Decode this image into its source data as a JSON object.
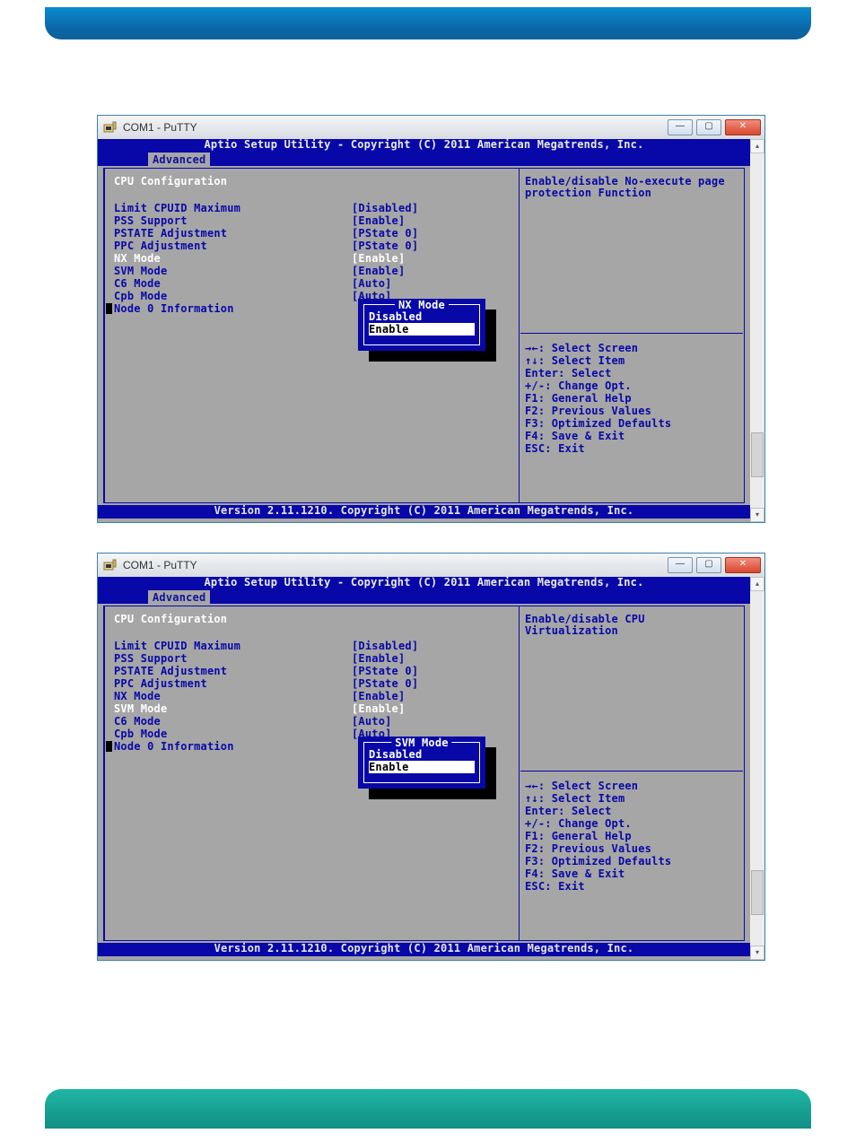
{
  "page": {
    "top_bar_color_start": "#0a8cd0",
    "top_bar_color_end": "#0c5f99",
    "bottom_bar_color_start": "#1fb6a5",
    "bottom_bar_color_end": "#138f84"
  },
  "colors": {
    "bios_bg": "#a6a6a6",
    "bios_blue": "#0808a8",
    "bios_white": "#ffffff",
    "bios_black": "#000000",
    "win_border": "#3c7fb1"
  },
  "window": {
    "title": "COM1 - PuTTY",
    "btn_min": "—",
    "btn_max": "▢",
    "btn_close": "✕"
  },
  "bios_common": {
    "header": "Aptio Setup Utility - Copyright (C) 2011 American Megatrends, Inc.",
    "tab": " Advanced ",
    "section": "CPU Configuration",
    "footer": "Version 2.11.1210. Copyright (C) 2011 American Megatrends, Inc.",
    "settings": [
      {
        "label": "Limit CPUID Maximum",
        "value": "[Disabled]"
      },
      {
        "label": "PSS Support",
        "value": "[Enable]"
      },
      {
        "label": "PSTATE Adjustment",
        "value": "[PState 0]"
      },
      {
        "label": "PPC Adjustment",
        "value": "[PState 0]"
      },
      {
        "label": "NX Mode",
        "value": "[Enable]"
      },
      {
        "label": "SVM Mode",
        "value": "[Enable]"
      },
      {
        "label": "C6 Mode",
        "value": "[Auto]"
      },
      {
        "label": "Cpb Mode",
        "value": "[Auto]"
      }
    ],
    "submenu": "Node 0 Information",
    "help_keys": [
      "→←: Select Screen",
      "↑↓: Select Item",
      "Enter: Select",
      "+/-: Change Opt.",
      "F1: General Help",
      "F2: Previous Values",
      "F3: Optimized Defaults",
      "F4: Save & Exit",
      "ESC: Exit"
    ]
  },
  "screen1": {
    "highlighted_row": 4,
    "help_text": [
      "Enable/disable No-execute page",
      "protection Function"
    ],
    "popup": {
      "title": " NX Mode ",
      "options": [
        "Disabled",
        "Enable"
      ],
      "selected": 1
    }
  },
  "screen2": {
    "highlighted_row": 5,
    "help_text": [
      "Enable/disable CPU",
      "Virtualization"
    ],
    "popup": {
      "title": " SVM Mode ",
      "options": [
        "Disabled",
        "Enable"
      ],
      "selected": 1
    }
  }
}
